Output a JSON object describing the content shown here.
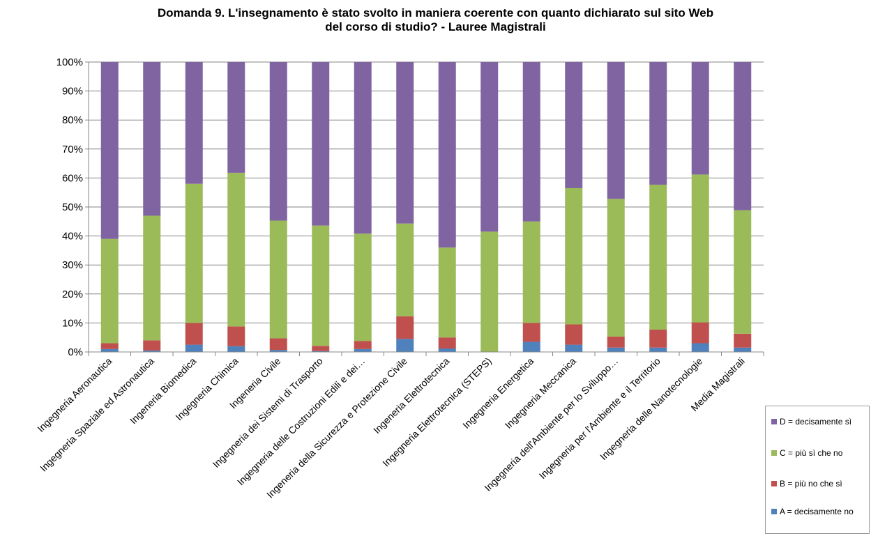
{
  "chart_data": {
    "type": "bar",
    "stacked": true,
    "title": [
      "Domanda 9. L'insegnamento è stato svolto in maniera coerente con quanto dichiarato sul sito Web",
      "del corso di studio? - Lauree Magistrali"
    ],
    "categories": [
      "Ingegneria Aeronautica",
      "Ingegneria Spaziale ed Astronautica",
      "Ingeneria Biomedica",
      "Ingegneria Chimica",
      "Ingeneria Civile",
      "Ingegneria dei Sistemi di Trasporto",
      "Ingegneria delle Costruzioni Edili e dei…",
      "Ingeneria della Sicurezza e Protezione Civile",
      "Ingeneria Elettrotecnica",
      "Ingegneria Elettrotecnica (STEPS)",
      "Ingegneria Energetica",
      "Ingegneria Meccanica",
      "Ingegneria dell'Ambiente per lo Sviluppo…",
      "Ingegneria per l'Ambiente e il Territorio",
      "Ingegneria delle Nanotecnologie",
      "Media Magistrali"
    ],
    "series": [
      {
        "name": "A = decisamente no",
        "color": "#4f81bd",
        "values": [
          1.0,
          0.5,
          2.5,
          2.0,
          0.7,
          0.3,
          1.0,
          4.5,
          1.2,
          0.0,
          3.5,
          2.5,
          1.5,
          1.5,
          3.0,
          1.5
        ]
      },
      {
        "name": "B = più no che sì",
        "color": "#c0504d",
        "values": [
          2.0,
          3.5,
          7.5,
          6.8,
          4.0,
          1.8,
          2.8,
          7.8,
          3.8,
          0.0,
          6.5,
          7.0,
          3.8,
          6.2,
          7.2,
          4.8
        ]
      },
      {
        "name": "C = più sì che no",
        "color": "#9bbb59",
        "values": [
          36.0,
          43.0,
          48.0,
          53.0,
          40.6,
          41.5,
          37.0,
          32.0,
          31.0,
          41.5,
          35.0,
          47.0,
          47.5,
          50.0,
          51.0,
          42.6
        ]
      },
      {
        "name": "D = decisamente sì",
        "color": "#8064a2",
        "values": [
          61.0,
          53.0,
          42.0,
          38.2,
          54.7,
          56.4,
          59.2,
          55.7,
          64.0,
          58.5,
          55.0,
          43.5,
          47.2,
          42.3,
          38.8,
          51.1
        ]
      }
    ],
    "legend_order": [
      "D = decisamente sì",
      "C = più sì che no",
      "B = più no che sì",
      "A = decisamente no"
    ],
    "yticks": [
      "0%",
      "10%",
      "20%",
      "30%",
      "40%",
      "50%",
      "60%",
      "70%",
      "80%",
      "90%",
      "100%"
    ],
    "ylim": [
      0,
      100
    ],
    "grid": true,
    "legend_position": "bottom-right"
  }
}
